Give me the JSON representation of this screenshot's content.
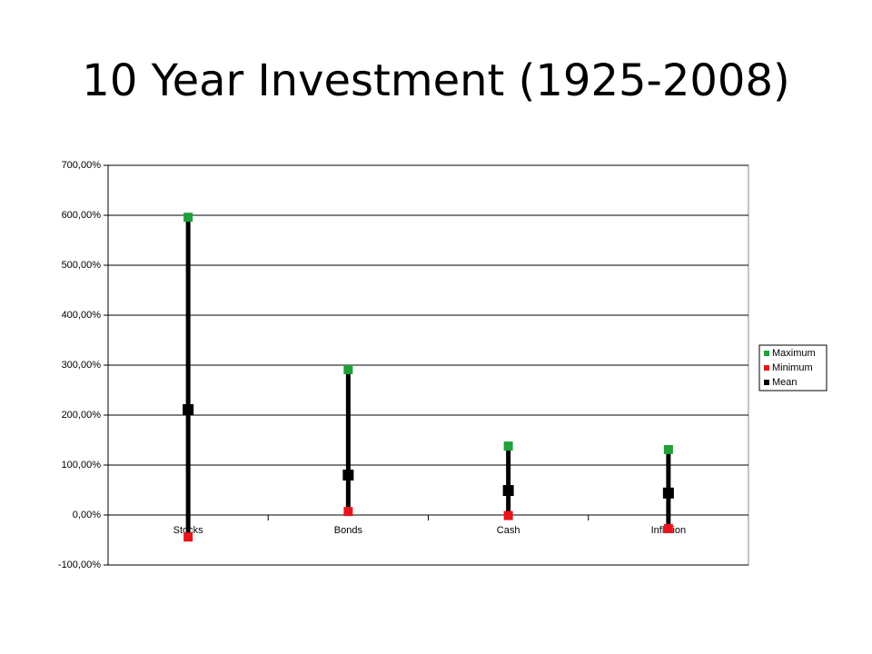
{
  "chart_data": {
    "type": "highlow",
    "title": "10 Year Investment (1925-2008)",
    "categories": [
      "Stocks",
      "Bonds",
      "Cash",
      "Inflation"
    ],
    "series": [
      {
        "name": "Maximum",
        "color": "#1fa03a",
        "values": [
          596,
          291,
          138,
          131
        ]
      },
      {
        "name": "Minimum",
        "color": "#e8141c",
        "values": [
          -44,
          7,
          -1,
          -27
        ]
      },
      {
        "name": "Mean",
        "color": "#000000",
        "values": [
          211,
          80,
          49,
          44
        ]
      }
    ],
    "ylim": [
      -100,
      700
    ],
    "yticks": [
      {
        "value": -100,
        "label": "-100,00%"
      },
      {
        "value": 0,
        "label": "0,00%"
      },
      {
        "value": 100,
        "label": "100,00%"
      },
      {
        "value": 200,
        "label": "200,00%"
      },
      {
        "value": 300,
        "label": "300,00%"
      },
      {
        "value": 400,
        "label": "400,00%"
      },
      {
        "value": 500,
        "label": "500,00%"
      },
      {
        "value": 600,
        "label": "600,00%"
      },
      {
        "value": 700,
        "label": "700,00%"
      }
    ],
    "grid": true,
    "legend": "right"
  }
}
